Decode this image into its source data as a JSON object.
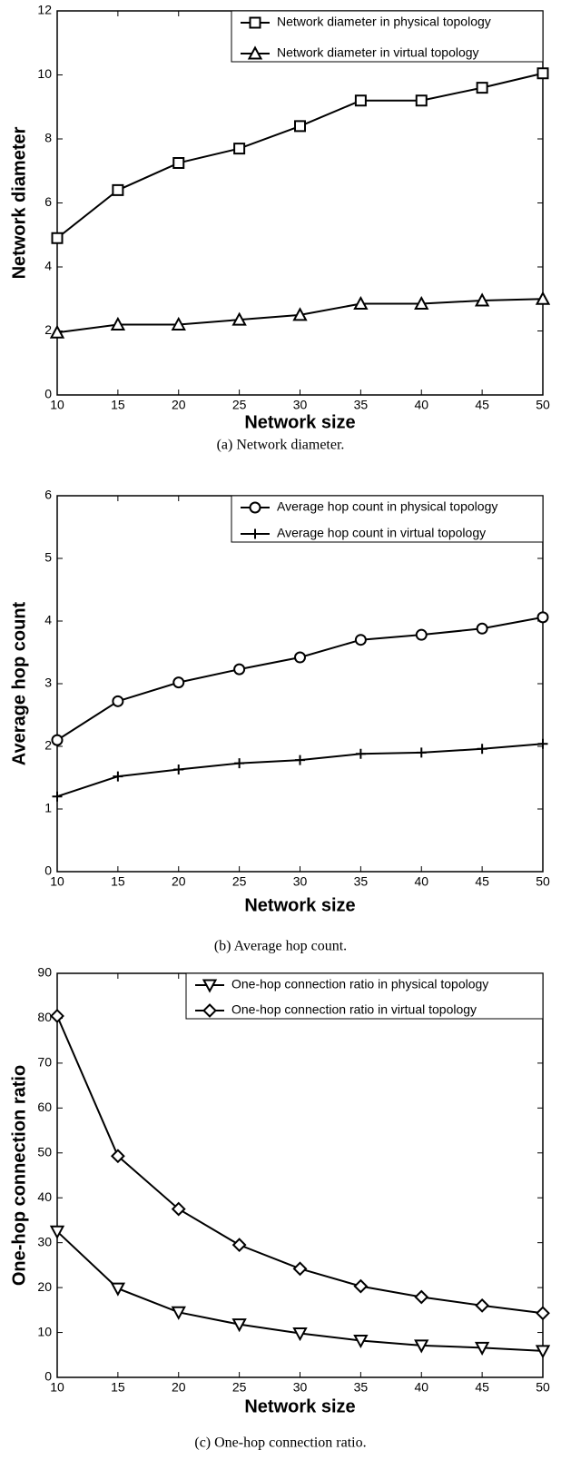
{
  "chart_data": [
    {
      "type": "line",
      "xlabel": "Network size",
      "ylabel": "Network diameter",
      "caption": "(a) Network diameter.",
      "x": [
        10,
        15,
        20,
        25,
        30,
        35,
        40,
        45,
        50
      ],
      "xlim": [
        10,
        50
      ],
      "xticks": [
        10,
        15,
        20,
        25,
        30,
        35,
        40,
        45,
        50
      ],
      "ylim": [
        0,
        12
      ],
      "yticks": [
        0,
        2,
        4,
        6,
        8,
        10,
        12
      ],
      "grid": false,
      "legend": "upper right",
      "series": [
        {
          "name": "Network diameter in physical topology",
          "color": "#000000",
          "marker": "square",
          "values": [
            4.9,
            6.4,
            7.25,
            7.7,
            8.4,
            9.2,
            9.2,
            9.6,
            10.05
          ]
        },
        {
          "name": "Network diameter in virtual topology",
          "color": "#000000",
          "marker": "triangle-up",
          "values": [
            1.95,
            2.2,
            2.2,
            2.35,
            2.5,
            2.85,
            2.85,
            2.95,
            3.0
          ]
        }
      ]
    },
    {
      "type": "line",
      "xlabel": "Network size",
      "ylabel": "Average hop count",
      "caption": "(b) Average hop count.",
      "x": [
        10,
        15,
        20,
        25,
        30,
        35,
        40,
        45,
        50
      ],
      "xlim": [
        10,
        50
      ],
      "xticks": [
        10,
        15,
        20,
        25,
        30,
        35,
        40,
        45,
        50
      ],
      "ylim": [
        0,
        6
      ],
      "yticks": [
        0,
        1,
        2,
        3,
        4,
        5,
        6
      ],
      "grid": false,
      "legend": "upper right",
      "series": [
        {
          "name": "Average hop count in physical topology",
          "color": "#000000",
          "marker": "circle",
          "values": [
            2.1,
            2.72,
            3.02,
            3.23,
            3.42,
            3.7,
            3.78,
            3.88,
            4.06
          ]
        },
        {
          "name": "Average hop count in virtual topology",
          "color": "#000000",
          "marker": "plus",
          "values": [
            1.2,
            1.52,
            1.63,
            1.73,
            1.78,
            1.88,
            1.9,
            1.96,
            2.04
          ]
        }
      ]
    },
    {
      "type": "line",
      "xlabel": "Network size",
      "ylabel": "One-hop connection ratio",
      "caption": "(c) One-hop connection ratio.",
      "x": [
        10,
        15,
        20,
        25,
        30,
        35,
        40,
        45,
        50
      ],
      "xlim": [
        10,
        50
      ],
      "xticks": [
        10,
        15,
        20,
        25,
        30,
        35,
        40,
        45,
        50
      ],
      "ylim": [
        0,
        90
      ],
      "yticks": [
        0,
        10,
        20,
        30,
        40,
        50,
        60,
        70,
        80,
        90
      ],
      "grid": false,
      "legend": "upper right",
      "series": [
        {
          "name": "One-hop connection ratio in physical topology",
          "color": "#000000",
          "marker": "triangle-down",
          "values": [
            32.5,
            19.8,
            14.5,
            11.8,
            9.8,
            8.2,
            7.1,
            6.6,
            5.9
          ]
        },
        {
          "name": "One-hop connection ratio in virtual topology",
          "color": "#000000",
          "marker": "diamond",
          "values": [
            80.5,
            49.3,
            37.5,
            29.5,
            24.2,
            20.3,
            17.9,
            16.0,
            14.3
          ]
        }
      ]
    }
  ]
}
